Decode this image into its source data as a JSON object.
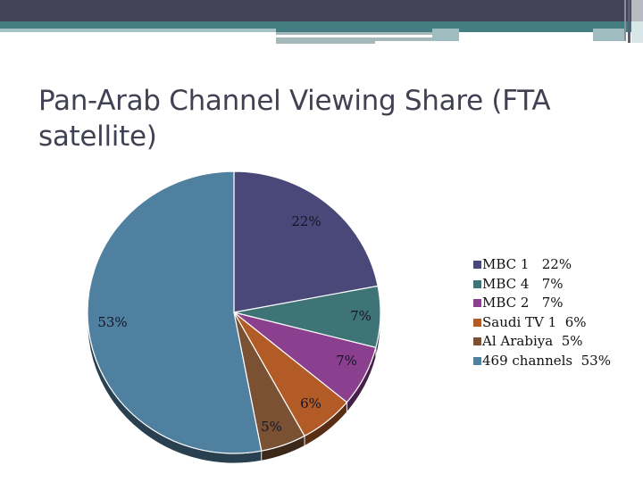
{
  "slide": {
    "title": "Pan-Arab Channel Viewing Share (FTA satellite)",
    "colors": {
      "top_bar": "#424356",
      "accent_teal": "#457e82",
      "title_text": "#404253"
    }
  },
  "chart_data": {
    "type": "pie",
    "style": "3d-pie",
    "title": "Pan-Arab Channel Viewing Share (FTA satellite)",
    "start_angle": "12 o'clock, clockwise",
    "legend_position": "right",
    "slices": [
      {
        "name": "MBC 1",
        "value": 22,
        "label": "22%",
        "legend": "MBC 1   22%",
        "color": "#4a4878"
      },
      {
        "name": "MBC 4",
        "value": 7,
        "label": "7%",
        "legend": "MBC 4   7%",
        "color": "#3f7476"
      },
      {
        "name": "MBC 2",
        "value": 7,
        "label": "7%",
        "legend": "MBC 2   7%",
        "color": "#8b3f8f"
      },
      {
        "name": "Saudi TV 1",
        "value": 6,
        "label": "6%",
        "legend": "Saudi TV 1  6%",
        "color": "#b25b27"
      },
      {
        "name": "Al Arabiya",
        "value": 5,
        "label": "5%",
        "legend": "Al Arabiya  5%",
        "color": "#7a5133"
      },
      {
        "name": "469 channels",
        "value": 53,
        "label": "53%",
        "legend": "469 channels  53%",
        "color": "#4f80a0"
      }
    ]
  }
}
